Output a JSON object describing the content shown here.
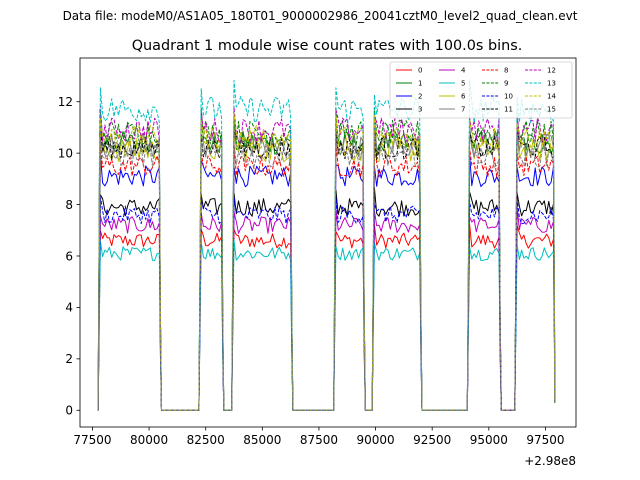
{
  "figure": {
    "suptitle": "Data file: modeM0/AS1A05_180T01_9000002986_20041cztM0_level2_quad_clean.evt"
  },
  "chart_data": {
    "type": "line",
    "title": "Quadrant 1 module wise count rates with 100.0s bins.",
    "xlabel": "",
    "ylabel": "",
    "x_offset_label": "+2.98e8",
    "xlim": [
      76950,
      98850
    ],
    "ylim": [
      -0.65,
      13.7
    ],
    "xticks": [
      77500,
      80000,
      82500,
      85000,
      87500,
      90000,
      92500,
      95000,
      97500
    ],
    "xtick_labels": [
      "77500",
      "80000",
      "82500",
      "85000",
      "87500",
      "90000",
      "92500",
      "95000",
      "97500"
    ],
    "yticks": [
      0,
      2,
      4,
      6,
      8,
      10,
      12
    ],
    "ytick_labels": [
      "0",
      "2",
      "4",
      "6",
      "8",
      "10",
      "12"
    ],
    "grid": false,
    "legend_placement": "top-right",
    "bin_width": 100,
    "active_intervals": [
      [
        77850,
        80450
      ],
      [
        82300,
        83200
      ],
      [
        83750,
        86250
      ],
      [
        88250,
        89450
      ],
      [
        89950,
        91950
      ],
      [
        94150,
        95450
      ],
      [
        96250,
        97850
      ]
    ],
    "series": [
      {
        "name": "0",
        "color": "#ff0000",
        "dash": "solid",
        "mean": 6.6
      },
      {
        "name": "1",
        "color": "#008000",
        "dash": "solid",
        "mean": 10.4
      },
      {
        "name": "2",
        "color": "#0000ff",
        "dash": "solid",
        "mean": 9.1
      },
      {
        "name": "3",
        "color": "#000000",
        "dash": "solid",
        "mean": 7.9
      },
      {
        "name": "4",
        "color": "#bf00bf",
        "dash": "solid",
        "mean": 7.2
      },
      {
        "name": "5",
        "color": "#00bfbf",
        "dash": "solid",
        "mean": 6.1
      },
      {
        "name": "6",
        "color": "#bfbf00",
        "dash": "solid",
        "mean": 10.1
      },
      {
        "name": "7",
        "color": "#808080",
        "dash": "solid",
        "mean": 10.3
      },
      {
        "name": "8",
        "color": "#ff0000",
        "dash": "dashed",
        "mean": 9.5
      },
      {
        "name": "9",
        "color": "#008000",
        "dash": "dashed",
        "mean": 10.8
      },
      {
        "name": "10",
        "color": "#0000ff",
        "dash": "dashed",
        "mean": 7.6
      },
      {
        "name": "11",
        "color": "#000000",
        "dash": "dashed",
        "mean": 10.2
      },
      {
        "name": "12",
        "color": "#bf00bf",
        "dash": "dashed",
        "mean": 10.9
      },
      {
        "name": "13",
        "color": "#00bfbf",
        "dash": "dashed",
        "mean": 11.7
      },
      {
        "name": "14",
        "color": "#bfbf00",
        "dash": "dashed",
        "mean": 10.6
      },
      {
        "name": "15",
        "color": "#808080",
        "dash": "dashed",
        "mean": 9.9
      }
    ]
  }
}
